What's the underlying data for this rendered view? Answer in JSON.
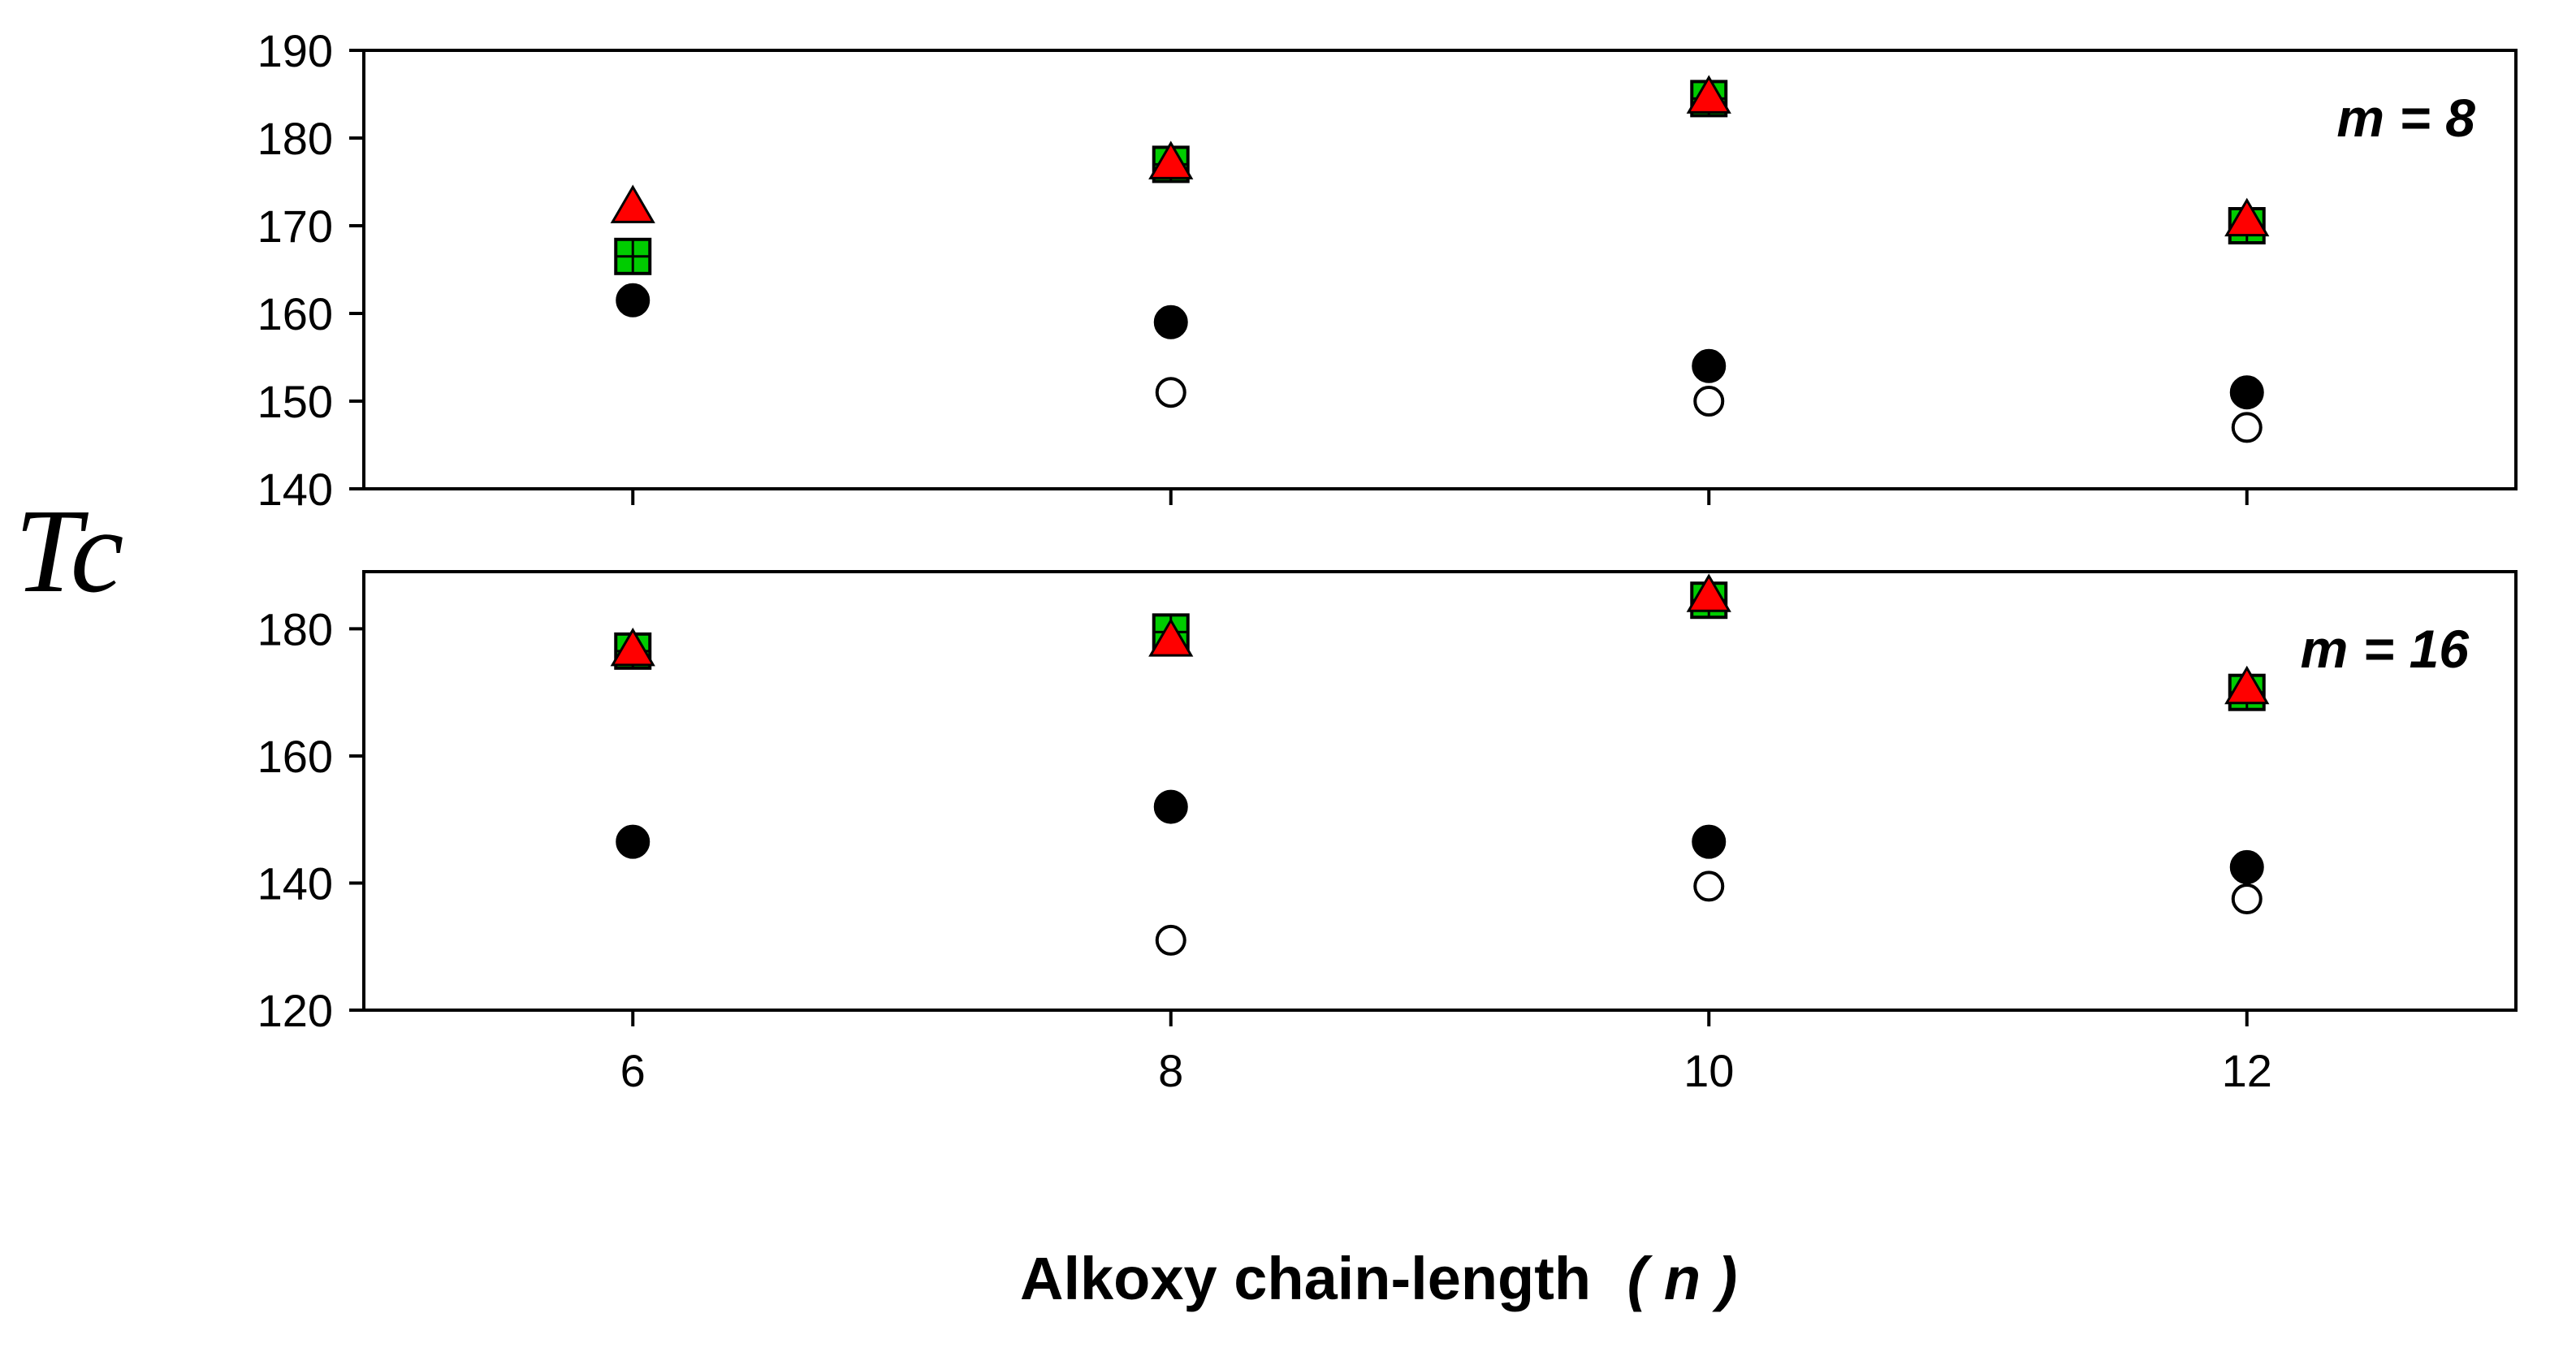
{
  "chart_data": {
    "type": "scatter",
    "ylabel": "Tc",
    "xlabel": "Alkoxy chain-length",
    "xlabel_var": "( n )",
    "x": [
      6,
      8,
      10,
      12
    ],
    "xticks": [
      "6",
      "8",
      "10",
      "12"
    ],
    "xlim": [
      5,
      13
    ],
    "panels": [
      {
        "label": "m = 8",
        "ylim": [
          140,
          190
        ],
        "yticks": [
          "140",
          "150",
          "160",
          "170",
          "180",
          "190"
        ],
        "series": [
          {
            "marker": "open-circle",
            "values": [
              null,
              151,
              150,
              147
            ]
          },
          {
            "marker": "filled-circle",
            "values": [
              161.5,
              159,
              154,
              151
            ]
          },
          {
            "marker": "green-square",
            "values": [
              166.5,
              177,
              184.5,
              170
            ]
          },
          {
            "marker": "red-triangle",
            "values": [
              172,
              177,
              184.5,
              170.5
            ]
          }
        ]
      },
      {
        "label": "m = 16",
        "ylim": [
          120,
          189
        ],
        "yticks": [
          "120",
          "140",
          "160",
          "180"
        ],
        "series": [
          {
            "marker": "open-circle",
            "values": [
              null,
              131,
              139.5,
              137.5
            ]
          },
          {
            "marker": "filled-circle",
            "values": [
              146.5,
              152,
              146.5,
              142.5
            ]
          },
          {
            "marker": "green-square",
            "values": [
              176.5,
              179.5,
              184.5,
              170
            ]
          },
          {
            "marker": "red-triangle",
            "values": [
              176.5,
              178,
              185,
              170.5
            ]
          }
        ]
      }
    ],
    "colors": {
      "triangle": "#ff0000",
      "square": "#00cc00",
      "circle": "#000000"
    },
    "grid": false,
    "legend": "none"
  }
}
